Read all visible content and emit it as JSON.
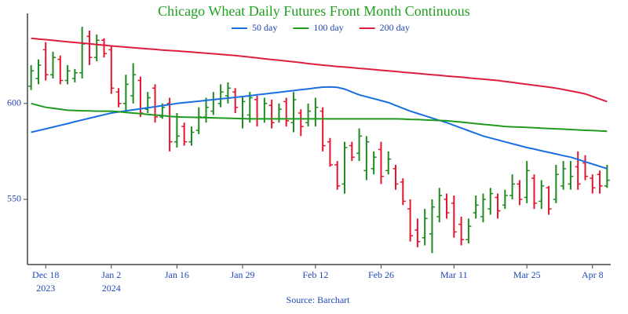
{
  "chart_data": {
    "type": "ohlc",
    "title": "Chicago Wheat Daily Futures Front Month Continuous",
    "source": "Source: Barchart",
    "x": [
      "2023-12-14",
      "2023-12-15",
      "2023-12-18",
      "2023-12-19",
      "2023-12-20",
      "2023-12-21",
      "2023-12-22",
      "2023-12-26",
      "2023-12-27",
      "2023-12-28",
      "2023-12-29",
      "2024-01-02",
      "2024-01-03",
      "2024-01-04",
      "2024-01-05",
      "2024-01-08",
      "2024-01-09",
      "2024-01-10",
      "2024-01-11",
      "2024-01-12",
      "2024-01-16",
      "2024-01-17",
      "2024-01-18",
      "2024-01-19",
      "2024-01-22",
      "2024-01-23",
      "2024-01-24",
      "2024-01-25",
      "2024-01-26",
      "2024-01-29",
      "2024-01-30",
      "2024-01-31",
      "2024-02-01",
      "2024-02-02",
      "2024-02-05",
      "2024-02-06",
      "2024-02-07",
      "2024-02-08",
      "2024-02-09",
      "2024-02-12",
      "2024-02-13",
      "2024-02-14",
      "2024-02-15",
      "2024-02-16",
      "2024-02-20",
      "2024-02-21",
      "2024-02-22",
      "2024-02-23",
      "2024-02-26",
      "2024-02-27",
      "2024-02-28",
      "2024-02-29",
      "2024-03-01",
      "2024-03-04",
      "2024-03-05",
      "2024-03-06",
      "2024-03-07",
      "2024-03-08",
      "2024-03-11",
      "2024-03-12",
      "2024-03-13",
      "2024-03-14",
      "2024-03-15",
      "2024-03-18",
      "2024-03-19",
      "2024-03-20",
      "2024-03-21",
      "2024-03-22",
      "2024-03-25",
      "2024-03-26",
      "2024-03-27",
      "2024-03-28",
      "2024-04-01",
      "2024-04-02",
      "2024-04-03",
      "2024-04-04",
      "2024-04-05",
      "2024-04-08",
      "2024-04-09",
      "2024-04-10"
    ],
    "ohlc": {
      "up_color": "#1f8a1f",
      "down_color": "#e3162e",
      "open": [
        609,
        613,
        628,
        615,
        623,
        612,
        613,
        616,
        635,
        624,
        633,
        628,
        606,
        600,
        604,
        612,
        597,
        608,
        593,
        600,
        580,
        588,
        580,
        586,
        593,
        596,
        600,
        604,
        606,
        592,
        594,
        602,
        592,
        599,
        592,
        601,
        590,
        595,
        590,
        592,
        596,
        580,
        568,
        558,
        578,
        574,
        565,
        566,
        576,
        565,
        566,
        559,
        545,
        534,
        530,
        532,
        541,
        550,
        548,
        537,
        529,
        543,
        541,
        545,
        551,
        547,
        552,
        558,
        551,
        561,
        549,
        556,
        550,
        557,
        558,
        567,
        569,
        561,
        563,
        557
      ],
      "high": [
        620,
        623,
        632,
        627,
        625,
        620,
        618,
        640,
        638,
        636,
        634,
        630,
        608,
        615,
        621,
        614,
        606,
        610,
        600,
        603,
        595,
        590,
        588,
        598,
        603,
        606,
        610,
        611,
        608,
        604,
        606,
        604,
        603,
        602,
        600,
        603,
        606,
        597,
        600,
        603,
        598,
        582,
        570,
        580,
        580,
        587,
        583,
        575,
        580,
        575,
        568,
        561,
        550,
        540,
        545,
        550,
        556,
        553,
        552,
        541,
        540,
        552,
        553,
        556,
        553,
        555,
        563,
        560,
        570,
        563,
        560,
        557,
        568,
        570,
        570,
        575,
        573,
        563,
        565,
        568
      ],
      "low": [
        607,
        610,
        612,
        613,
        610,
        610,
        611,
        613,
        620,
        622,
        624,
        605,
        598,
        595,
        600,
        593,
        595,
        590,
        592,
        575,
        577,
        578,
        578,
        584,
        590,
        594,
        598,
        600,
        595,
        587,
        590,
        588,
        590,
        587,
        590,
        588,
        585,
        583,
        588,
        588,
        575,
        567,
        555,
        553,
        570,
        570,
        560,
        563,
        558,
        563,
        555,
        547,
        528,
        525,
        526,
        522,
        538,
        540,
        530,
        526,
        527,
        540,
        538,
        542,
        540,
        545,
        550,
        547,
        548,
        545,
        545,
        542,
        548,
        555,
        555,
        555,
        560,
        553,
        553,
        556
      ],
      "close": [
        617,
        620,
        615,
        624,
        612,
        617,
        616,
        631,
        624,
        633,
        626,
        608,
        600,
        610,
        615,
        595,
        603,
        593,
        598,
        580,
        583,
        580,
        585,
        593,
        598,
        602,
        606,
        608,
        598,
        601,
        603,
        592,
        600,
        590,
        597,
        591,
        602,
        588,
        596,
        598,
        578,
        568,
        557,
        577,
        572,
        583,
        580,
        572,
        562,
        571,
        558,
        549,
        531,
        528,
        540,
        546,
        552,
        543,
        533,
        529,
        536,
        547,
        550,
        553,
        544,
        552,
        558,
        550,
        565,
        548,
        557,
        545,
        563,
        566,
        562,
        558,
        562,
        556,
        557,
        560
      ]
    },
    "series": [
      {
        "name": "50 day",
        "color": "#1a6fe0",
        "values": [
          585,
          585.9,
          586.8,
          587.7,
          588.6,
          589.5,
          590.5,
          591.4,
          592.3,
          593.2,
          594.1,
          595,
          595.6,
          596.1,
          596.7,
          597.2,
          597.8,
          598.3,
          598.9,
          599.4,
          600,
          600.4,
          600.8,
          601.2,
          601.6,
          602,
          602.4,
          602.8,
          603.2,
          603.6,
          604,
          604.5,
          604.9,
          605.4,
          605.8,
          606.3,
          606.7,
          607.2,
          607.6,
          608.1,
          608.5,
          608.6,
          608.4,
          607.5,
          606,
          604.5,
          603.5,
          602.5,
          601.5,
          600.5,
          599,
          597.5,
          596,
          594.8,
          593.6,
          592.4,
          591.2,
          590,
          588.6,
          587.2,
          585.8,
          584.4,
          583,
          582,
          581,
          580,
          579,
          578,
          577,
          576.2,
          575.3,
          574.5,
          573.7,
          572.8,
          572,
          570.8,
          569.6,
          568.4,
          567.2,
          566
        ]
      },
      {
        "name": "100 day",
        "color": "#1f9a1f",
        "values": [
          600,
          599,
          598,
          597.5,
          597,
          596.5,
          596.3,
          596.2,
          596.1,
          596,
          596,
          596,
          595.7,
          595.3,
          595,
          594.7,
          594.3,
          594,
          593.7,
          593.3,
          593,
          592.9,
          592.8,
          592.7,
          592.6,
          592.5,
          592.4,
          592.3,
          592.2,
          592.1,
          592,
          592,
          592,
          592,
          592,
          592,
          592,
          592,
          592,
          592,
          592,
          592,
          592,
          592,
          592,
          592,
          592,
          592,
          592,
          592,
          592,
          591.9,
          591.7,
          591.6,
          591.4,
          591.3,
          591.1,
          591,
          590.6,
          590.3,
          589.9,
          589.5,
          589.1,
          588.8,
          588.4,
          588,
          587.8,
          587.7,
          587.5,
          587.3,
          587.1,
          586.9,
          586.8,
          586.6,
          586.4,
          586.2,
          586,
          585.9,
          585.7,
          585.5
        ]
      },
      {
        "name": "200 day",
        "color": "#dc1f3f",
        "values": [
          634,
          633.6,
          633.3,
          632.9,
          632.5,
          632.2,
          631.8,
          631.5,
          631.1,
          630.7,
          630.4,
          630,
          629.7,
          629.4,
          629.1,
          628.8,
          628.5,
          628.2,
          627.9,
          627.6,
          627.4,
          627.1,
          626.8,
          626.5,
          626.2,
          625.9,
          625.6,
          625.3,
          625,
          624.6,
          624.2,
          623.8,
          623.3,
          622.9,
          622.5,
          622.1,
          621.7,
          621.3,
          620.8,
          620.4,
          620,
          619.7,
          619.3,
          619,
          618.7,
          618.3,
          618,
          617.7,
          617.3,
          617,
          616.7,
          616.3,
          616,
          615.7,
          615.3,
          615,
          614.7,
          614.3,
          614,
          613.7,
          613.3,
          613,
          612.7,
          612.3,
          612,
          611.5,
          611,
          610.5,
          610,
          609.5,
          609,
          608.5,
          608,
          607.3,
          606.5,
          605.8,
          605,
          603.7,
          602.3,
          601
        ]
      }
    ],
    "ylim": [
      516,
      647
    ],
    "yticks": [
      550,
      600
    ],
    "xticks": [
      {
        "value": "2023-12-18",
        "label": "Dec 18",
        "year": "2023"
      },
      {
        "value": "2024-01-02",
        "label": "Jan 2",
        "year": "2024"
      },
      {
        "value": "2024-01-16",
        "label": "Jan 16"
      },
      {
        "value": "2024-01-29",
        "label": "Jan 29"
      },
      {
        "value": "2024-02-12",
        "label": "Feb 12"
      },
      {
        "value": "2024-02-26",
        "label": "Feb 26"
      },
      {
        "value": "2024-03-11",
        "label": "Mar 11"
      },
      {
        "value": "2024-03-25",
        "label": "Mar 25"
      },
      {
        "value": "2024-04-08",
        "label": "Apr 8"
      }
    ],
    "legend": "top",
    "grid": false
  }
}
